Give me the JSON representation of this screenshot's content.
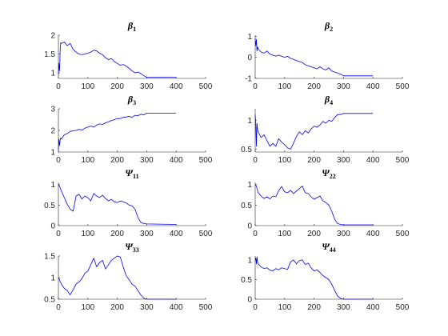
{
  "chart_data": [
    {
      "type": "line",
      "title": "β",
      "title_sub": "1",
      "xlim": [
        0,
        500
      ],
      "ylim": [
        0.85,
        2.0
      ],
      "xticks": [
        0,
        100,
        200,
        300,
        400,
        500
      ],
      "yticks": [
        1,
        1.5,
        2
      ],
      "series": [
        {
          "color": "#0000ff",
          "x": [
            0,
            2,
            4,
            6,
            8,
            10,
            20,
            30,
            40,
            50,
            60,
            70,
            80,
            90,
            100,
            110,
            120,
            130,
            140,
            150,
            160,
            170,
            180,
            190,
            200,
            210,
            220,
            230,
            240,
            250,
            260,
            270,
            280,
            290,
            300,
            400
          ],
          "y": [
            0.95,
            1.25,
            1.05,
            1.6,
            1.8,
            1.78,
            1.82,
            1.72,
            1.78,
            1.62,
            1.55,
            1.5,
            1.48,
            1.5,
            1.52,
            1.55,
            1.6,
            1.58,
            1.52,
            1.48,
            1.4,
            1.35,
            1.38,
            1.3,
            1.25,
            1.2,
            1.22,
            1.18,
            1.12,
            1.05,
            1.0,
            1.02,
            0.98,
            0.92,
            0.88,
            0.88
          ]
        }
      ]
    },
    {
      "type": "line",
      "title": "β",
      "title_sub": "2",
      "xlim": [
        0,
        500
      ],
      "ylim": [
        -1,
        1.05
      ],
      "xticks": [
        0,
        100,
        200,
        300,
        400,
        500
      ],
      "yticks": [
        -1,
        0,
        1
      ],
      "series": [
        {
          "color": "#0000ff",
          "x": [
            0,
            2,
            4,
            6,
            8,
            10,
            20,
            30,
            40,
            50,
            60,
            70,
            80,
            90,
            100,
            110,
            120,
            130,
            140,
            150,
            160,
            170,
            180,
            190,
            200,
            210,
            220,
            230,
            240,
            250,
            260,
            270,
            280,
            290,
            300,
            400
          ],
          "y": [
            0.9,
            0.55,
            0.85,
            0.3,
            0.5,
            0.4,
            0.25,
            0.2,
            0.3,
            0.15,
            0.1,
            0.05,
            0.1,
            0.05,
            0.0,
            0.05,
            -0.05,
            -0.1,
            -0.15,
            -0.2,
            -0.25,
            -0.35,
            -0.4,
            -0.45,
            -0.5,
            -0.55,
            -0.45,
            -0.55,
            -0.6,
            -0.5,
            -0.65,
            -0.7,
            -0.75,
            -0.8,
            -0.88,
            -0.88
          ]
        }
      ]
    },
    {
      "type": "line",
      "title": "β",
      "title_sub": "3",
      "xlim": [
        0,
        500
      ],
      "ylim": [
        1,
        3
      ],
      "xticks": [
        0,
        100,
        200,
        300,
        400,
        500
      ],
      "yticks": [
        1,
        2,
        3
      ],
      "series": [
        {
          "color": "#0000ff",
          "x": [
            0,
            2,
            4,
            6,
            8,
            10,
            20,
            30,
            40,
            50,
            60,
            70,
            80,
            90,
            100,
            110,
            120,
            130,
            140,
            150,
            160,
            170,
            180,
            190,
            200,
            210,
            220,
            230,
            240,
            250,
            260,
            270,
            280,
            290,
            300,
            400
          ],
          "y": [
            1.1,
            1.6,
            1.3,
            1.55,
            1.65,
            1.6,
            1.8,
            1.85,
            1.95,
            1.98,
            2.0,
            2.05,
            2.02,
            2.1,
            2.15,
            2.2,
            2.15,
            2.25,
            2.3,
            2.28,
            2.35,
            2.4,
            2.45,
            2.5,
            2.55,
            2.55,
            2.6,
            2.62,
            2.65,
            2.6,
            2.7,
            2.68,
            2.75,
            2.72,
            2.8,
            2.8
          ]
        }
      ]
    },
    {
      "type": "line",
      "title": "β",
      "title_sub": "4",
      "xlim": [
        0,
        500
      ],
      "ylim": [
        0.45,
        1.2
      ],
      "xticks": [
        0,
        100,
        200,
        300,
        400,
        500
      ],
      "yticks": [
        0.5,
        1
      ],
      "series": [
        {
          "color": "#0000ff",
          "x": [
            0,
            2,
            4,
            6,
            8,
            10,
            20,
            30,
            40,
            50,
            60,
            70,
            80,
            90,
            100,
            110,
            120,
            130,
            140,
            150,
            160,
            170,
            180,
            190,
            200,
            210,
            220,
            230,
            240,
            250,
            260,
            270,
            280,
            290,
            300,
            400
          ],
          "y": [
            1.1,
            0.95,
            0.55,
            0.95,
            0.85,
            0.8,
            0.7,
            0.75,
            0.65,
            0.55,
            0.6,
            0.55,
            0.68,
            0.62,
            0.58,
            0.52,
            0.5,
            0.6,
            0.72,
            0.8,
            0.75,
            0.82,
            0.78,
            0.85,
            0.9,
            0.88,
            0.92,
            0.98,
            0.95,
            1.0,
            0.98,
            1.05,
            1.1,
            1.1,
            1.12,
            1.12
          ]
        }
      ]
    },
    {
      "type": "line",
      "title": "Ψ",
      "title_sub": "11",
      "xlim": [
        0,
        500
      ],
      "ylim": [
        0,
        1.05
      ],
      "xticks": [
        0,
        100,
        200,
        300,
        400,
        500
      ],
      "yticks": [
        0,
        0.5,
        1
      ],
      "series": [
        {
          "color": "#0000ff",
          "x": [
            0,
            2,
            4,
            6,
            8,
            10,
            20,
            30,
            40,
            50,
            60,
            70,
            80,
            90,
            100,
            110,
            120,
            130,
            140,
            150,
            160,
            170,
            180,
            190,
            200,
            210,
            220,
            230,
            240,
            250,
            260,
            270,
            280,
            290,
            300,
            400
          ],
          "y": [
            1.0,
            0.98,
            0.95,
            0.92,
            0.88,
            0.84,
            0.68,
            0.52,
            0.4,
            0.35,
            0.72,
            0.76,
            0.65,
            0.72,
            0.68,
            0.6,
            0.78,
            0.72,
            0.68,
            0.74,
            0.66,
            0.6,
            0.64,
            0.58,
            0.56,
            0.6,
            0.58,
            0.55,
            0.5,
            0.48,
            0.4,
            0.2,
            0.08,
            0.05,
            0.04,
            0.03
          ]
        }
      ]
    },
    {
      "type": "line",
      "title": "Ψ",
      "title_sub": "22",
      "xlim": [
        0,
        500
      ],
      "ylim": [
        0,
        1.05
      ],
      "xticks": [
        0,
        100,
        200,
        300,
        400,
        500
      ],
      "yticks": [
        0,
        0.5,
        1
      ],
      "series": [
        {
          "color": "#0000ff",
          "x": [
            0,
            2,
            4,
            6,
            8,
            10,
            20,
            30,
            40,
            50,
            60,
            70,
            80,
            90,
            100,
            110,
            120,
            130,
            140,
            150,
            160,
            170,
            180,
            190,
            200,
            210,
            220,
            230,
            240,
            250,
            260,
            270,
            280,
            290,
            300,
            400
          ],
          "y": [
            1.0,
            0.98,
            0.96,
            0.9,
            0.85,
            0.8,
            0.72,
            0.66,
            0.7,
            0.65,
            0.72,
            0.7,
            0.85,
            0.95,
            0.82,
            0.8,
            0.86,
            0.78,
            0.84,
            0.9,
            0.96,
            0.8,
            0.78,
            0.7,
            0.64,
            0.68,
            0.72,
            0.6,
            0.56,
            0.5,
            0.35,
            0.15,
            0.05,
            0.03,
            0.02,
            0.02
          ]
        }
      ]
    },
    {
      "type": "line",
      "title": "Ψ",
      "title_sub": "33",
      "xlim": [
        0,
        500
      ],
      "ylim": [
        0.5,
        1.5
      ],
      "xticks": [
        0,
        100,
        200,
        300,
        400,
        500
      ],
      "yticks": [
        0.5,
        1,
        1.5
      ],
      "series": [
        {
          "color": "#0000ff",
          "x": [
            0,
            2,
            4,
            6,
            8,
            10,
            20,
            30,
            40,
            50,
            60,
            70,
            80,
            90,
            100,
            110,
            120,
            130,
            140,
            150,
            160,
            170,
            180,
            190,
            200,
            210,
            220,
            230,
            240,
            250,
            260,
            270,
            280,
            290,
            300,
            400
          ],
          "y": [
            1.0,
            0.98,
            0.95,
            0.9,
            0.88,
            0.85,
            0.75,
            0.7,
            0.6,
            0.72,
            0.85,
            0.9,
            0.98,
            1.1,
            1.15,
            1.3,
            1.45,
            1.25,
            1.35,
            1.4,
            1.2,
            1.3,
            1.4,
            1.45,
            1.5,
            1.48,
            1.25,
            1.05,
            0.95,
            0.85,
            0.8,
            0.7,
            0.6,
            0.52,
            0.5,
            0.5
          ]
        }
      ]
    },
    {
      "type": "line",
      "title": "Ψ",
      "title_sub": "44",
      "xlim": [
        0,
        500
      ],
      "ylim": [
        0,
        1.1
      ],
      "xticks": [
        0,
        100,
        200,
        300,
        400,
        500
      ],
      "yticks": [
        0,
        0.5,
        1
      ],
      "series": [
        {
          "color": "#0000ff",
          "x": [
            0,
            2,
            4,
            6,
            8,
            10,
            20,
            30,
            40,
            50,
            60,
            70,
            80,
            90,
            100,
            110,
            120,
            130,
            140,
            150,
            160,
            170,
            180,
            190,
            200,
            210,
            220,
            230,
            240,
            250,
            260,
            270,
            280,
            290,
            300,
            400
          ],
          "y": [
            1.0,
            1.05,
            0.9,
            1.08,
            0.95,
            0.9,
            0.82,
            0.78,
            0.8,
            0.74,
            0.72,
            0.78,
            0.75,
            0.8,
            0.78,
            0.76,
            0.95,
            1.0,
            0.9,
            0.98,
            1.0,
            0.88,
            0.92,
            0.8,
            0.72,
            0.75,
            0.68,
            0.6,
            0.55,
            0.5,
            0.38,
            0.22,
            0.08,
            0.02,
            0.0,
            0.0
          ]
        }
      ]
    }
  ]
}
